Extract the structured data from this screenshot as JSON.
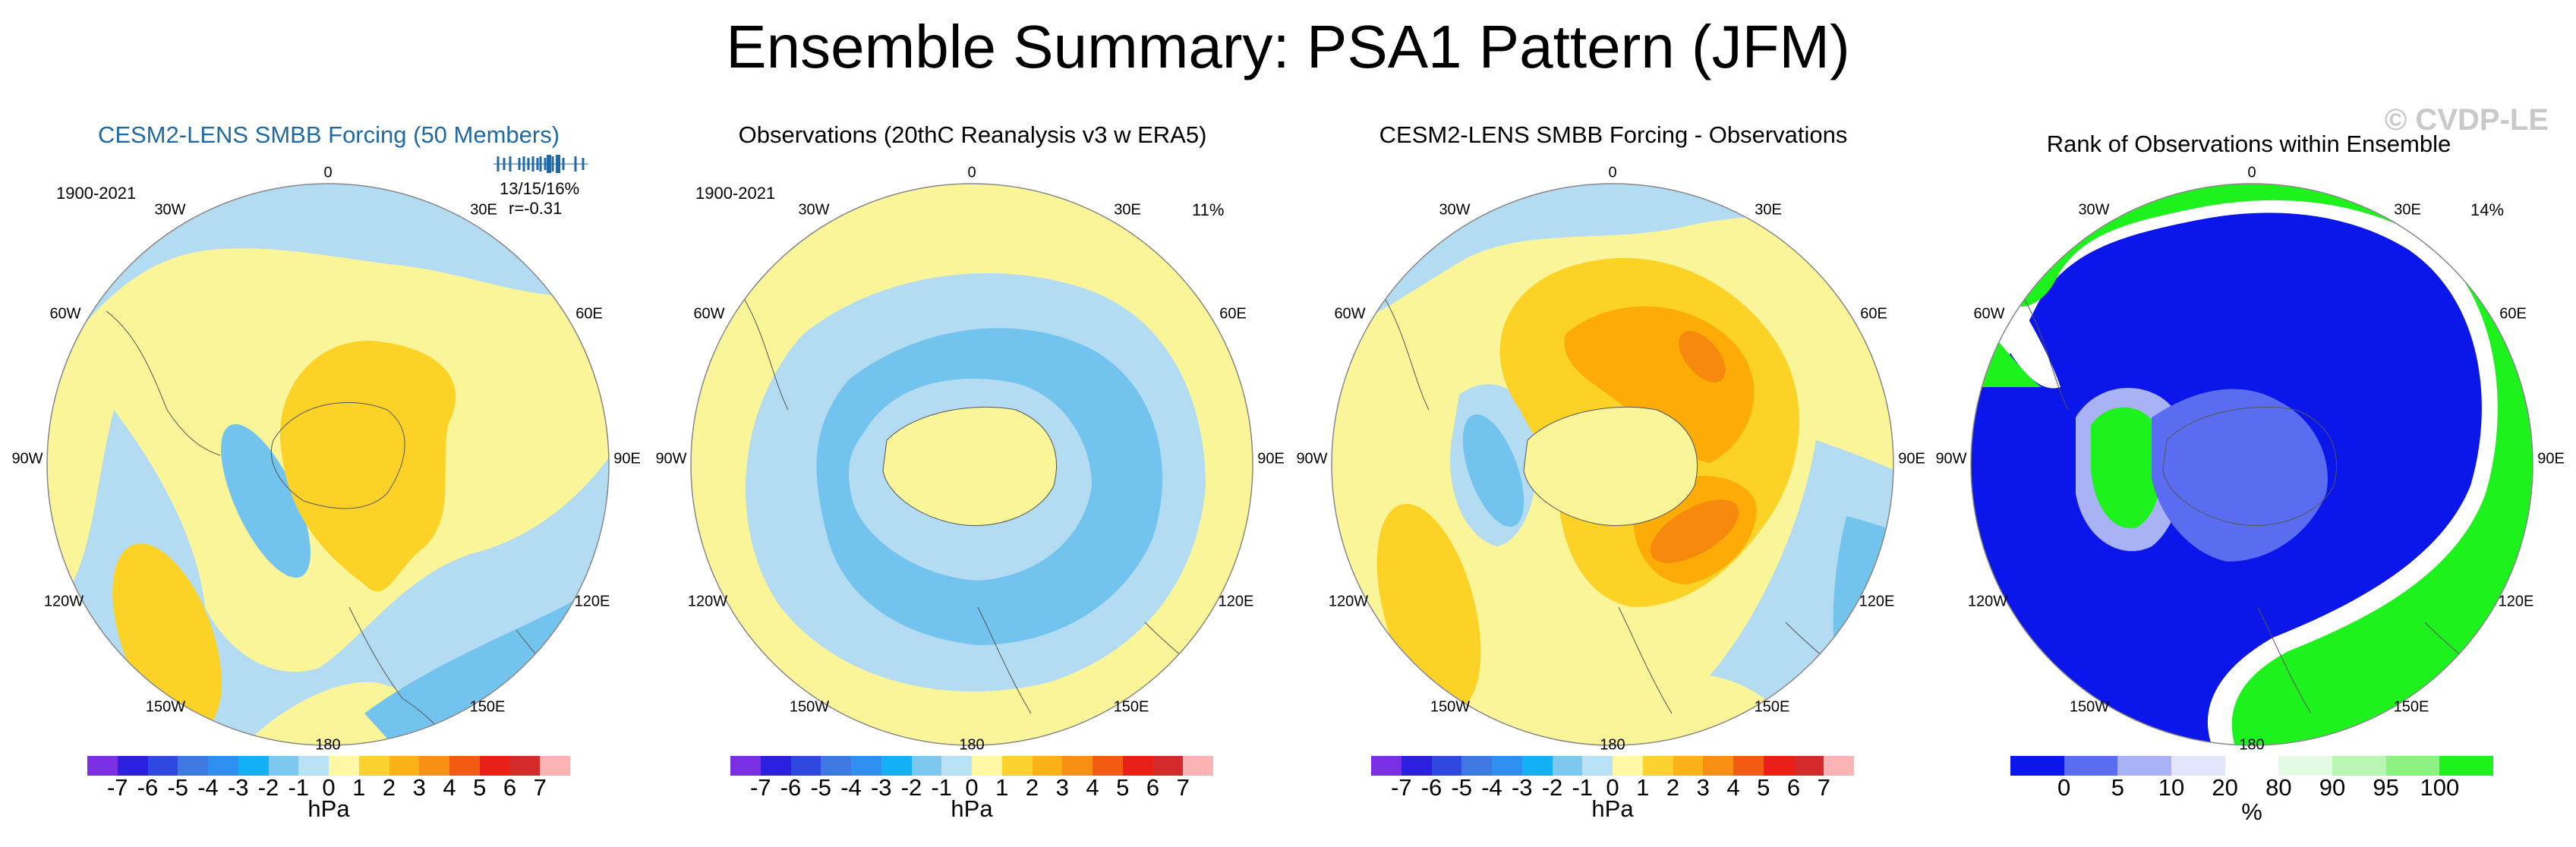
{
  "page": {
    "title": "Ensemble Summary: PSA1 Pattern (JFM)",
    "watermark": "© CVDP-LE"
  },
  "colors": {
    "contour_palette": [
      "#7b2fe3",
      "#2d1fe0",
      "#2f49e0",
      "#3f78e2",
      "#2f8ff0",
      "#14b0f5",
      "#7ec8f0",
      "#b8e1f5",
      "#fff7a3",
      "#fcd22e",
      "#fcb216",
      "#f88e12",
      "#f35b12",
      "#ea1f1a",
      "#d42a2a",
      "#fbb3b3"
    ],
    "rank_palette": [
      "#0a16ea",
      "#5a6df0",
      "#a8b2f5",
      "#e2e5fb",
      "#ffffff",
      "#e3fbe3",
      "#b9f5b3",
      "#8ef283",
      "#1df21d"
    ],
    "pos_low": "#fbf59a",
    "pos_mid": "#fcd227",
    "pos_high": "#fcab07",
    "pos_max": "#f7890e",
    "neg_low": "#b3dcf2",
    "neg_mid": "#73c3ef",
    "rank_blue": "#0a16ea",
    "rank_green": "#1df21d"
  },
  "panels": [
    {
      "title": "CESM2-LENS SMBB Forcing (50 Members)",
      "period": "1900-2021",
      "stat_top": "13/15/16%",
      "stat_bottom": "r=-0.31",
      "lon_labels": {
        "top": "0",
        "top_right": "30E",
        "right_upper": "60E",
        "right": "90E",
        "right_lower": "120E",
        "bottom_right": "150E",
        "bottom": "180",
        "bottom_left": "150W",
        "left_lower": "120W",
        "left": "90W",
        "left_upper": "60W",
        "top_left": "30W"
      }
    },
    {
      "title": "Observations (20thC Reanalysis v3 w ERA5)",
      "period": "1900-2021",
      "percent": "11%",
      "lon_labels": {
        "top": "0",
        "top_right": "30E",
        "right_upper": "60E",
        "right": "90E",
        "right_lower": "120E",
        "bottom_right": "150E",
        "bottom": "180",
        "bottom_left": "150W",
        "left_lower": "120W",
        "left": "90W",
        "left_upper": "60W",
        "top_left": "30W"
      }
    },
    {
      "title": "CESM2-LENS SMBB Forcing - Observations",
      "lon_labels": {
        "top": "0",
        "top_right": "30E",
        "right_upper": "60E",
        "right": "90E",
        "right_lower": "120E",
        "bottom_right": "150E",
        "bottom": "180",
        "bottom_left": "150W",
        "left_lower": "120W",
        "left": "90W",
        "left_upper": "60W",
        "top_left": "30W"
      }
    },
    {
      "title": "Rank of Observations within Ensemble",
      "percent": "14%",
      "lon_labels": {
        "top": "0",
        "top_right": "30E",
        "right_upper": "60E",
        "right": "90E",
        "right_lower": "120E",
        "bottom_right": "150E",
        "bottom": "180",
        "bottom_left": "150W",
        "left_lower": "120W",
        "left": "90W",
        "left_upper": "60W",
        "top_left": "30W"
      }
    }
  ],
  "chart_data": [
    {
      "type": "heatmap",
      "title": "CESM2-LENS SMBB Forcing (50 Members)",
      "projection": "south polar stereographic",
      "units": "hPa",
      "colorbar_ticks": [
        "-7",
        "-6",
        "-5",
        "-4",
        "-3",
        "-2",
        "-1",
        "0",
        "1",
        "2",
        "3",
        "4",
        "5",
        "6",
        "7"
      ]
    },
    {
      "type": "heatmap",
      "title": "Observations (20thC Reanalysis v3 w ERA5)",
      "projection": "south polar stereographic",
      "units": "hPa",
      "colorbar_ticks": [
        "-7",
        "-6",
        "-5",
        "-4",
        "-3",
        "-2",
        "-1",
        "0",
        "1",
        "2",
        "3",
        "4",
        "5",
        "6",
        "7"
      ]
    },
    {
      "type": "heatmap",
      "title": "CESM2-LENS SMBB Forcing - Observations",
      "projection": "south polar stereographic",
      "units": "hPa",
      "colorbar_ticks": [
        "-7",
        "-6",
        "-5",
        "-4",
        "-3",
        "-2",
        "-1",
        "0",
        "1",
        "2",
        "3",
        "4",
        "5",
        "6",
        "7"
      ]
    },
    {
      "type": "heatmap",
      "title": "Rank of Observations within Ensemble",
      "projection": "south polar stereographic",
      "units": "%",
      "colorbar_ticks": [
        "0",
        "5",
        "10",
        "20",
        "80",
        "90",
        "95",
        "100"
      ]
    }
  ]
}
